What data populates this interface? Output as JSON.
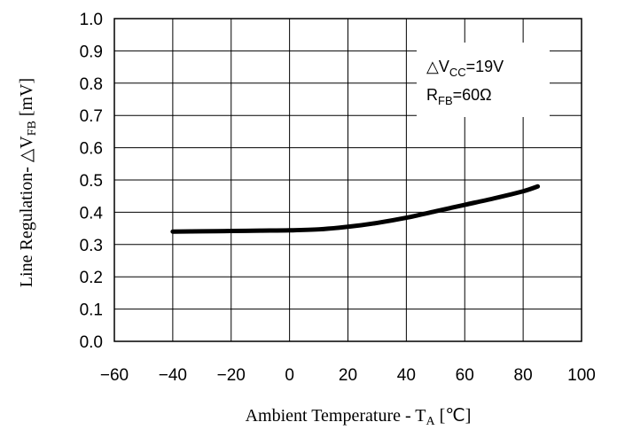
{
  "chart_data": {
    "type": "line",
    "title": "",
    "xlabel": {
      "main": "Ambient Temperature - T",
      "sub": "A",
      "unit": " [℃]"
    },
    "ylabel": {
      "main": "Line Regulation-  △V",
      "sub": "FB",
      "unit": "  [mV]"
    },
    "xlim": [
      -60,
      100
    ],
    "ylim": [
      0.0,
      1.0
    ],
    "xticks": [
      "−60",
      "−40",
      "−20",
      "0",
      "20",
      "40",
      "60",
      "80",
      "100"
    ],
    "xtick_values": [
      -60,
      -40,
      -20,
      0,
      20,
      40,
      60,
      80,
      100
    ],
    "yticks": [
      "0.0",
      "0.1",
      "0.2",
      "0.3",
      "0.4",
      "0.5",
      "0.6",
      "0.7",
      "0.8",
      "0.9",
      "1.0"
    ],
    "ytick_values": [
      0.0,
      0.1,
      0.2,
      0.3,
      0.4,
      0.5,
      0.6,
      0.7,
      0.8,
      0.9,
      1.0
    ],
    "grid": true,
    "series": [
      {
        "x": [
          -40,
          -30,
          -20,
          -10,
          0,
          10,
          20,
          30,
          40,
          50,
          60,
          70,
          80,
          85
        ],
        "y": [
          0.34,
          0.341,
          0.342,
          0.343,
          0.344,
          0.347,
          0.355,
          0.367,
          0.383,
          0.403,
          0.423,
          0.443,
          0.465,
          0.48
        ]
      }
    ],
    "annotations": [
      {
        "main": "△V",
        "sub": "CC",
        "rest": "=19V"
      },
      {
        "main": "R",
        "sub": "FB",
        "rest": "=60Ω"
      }
    ]
  }
}
